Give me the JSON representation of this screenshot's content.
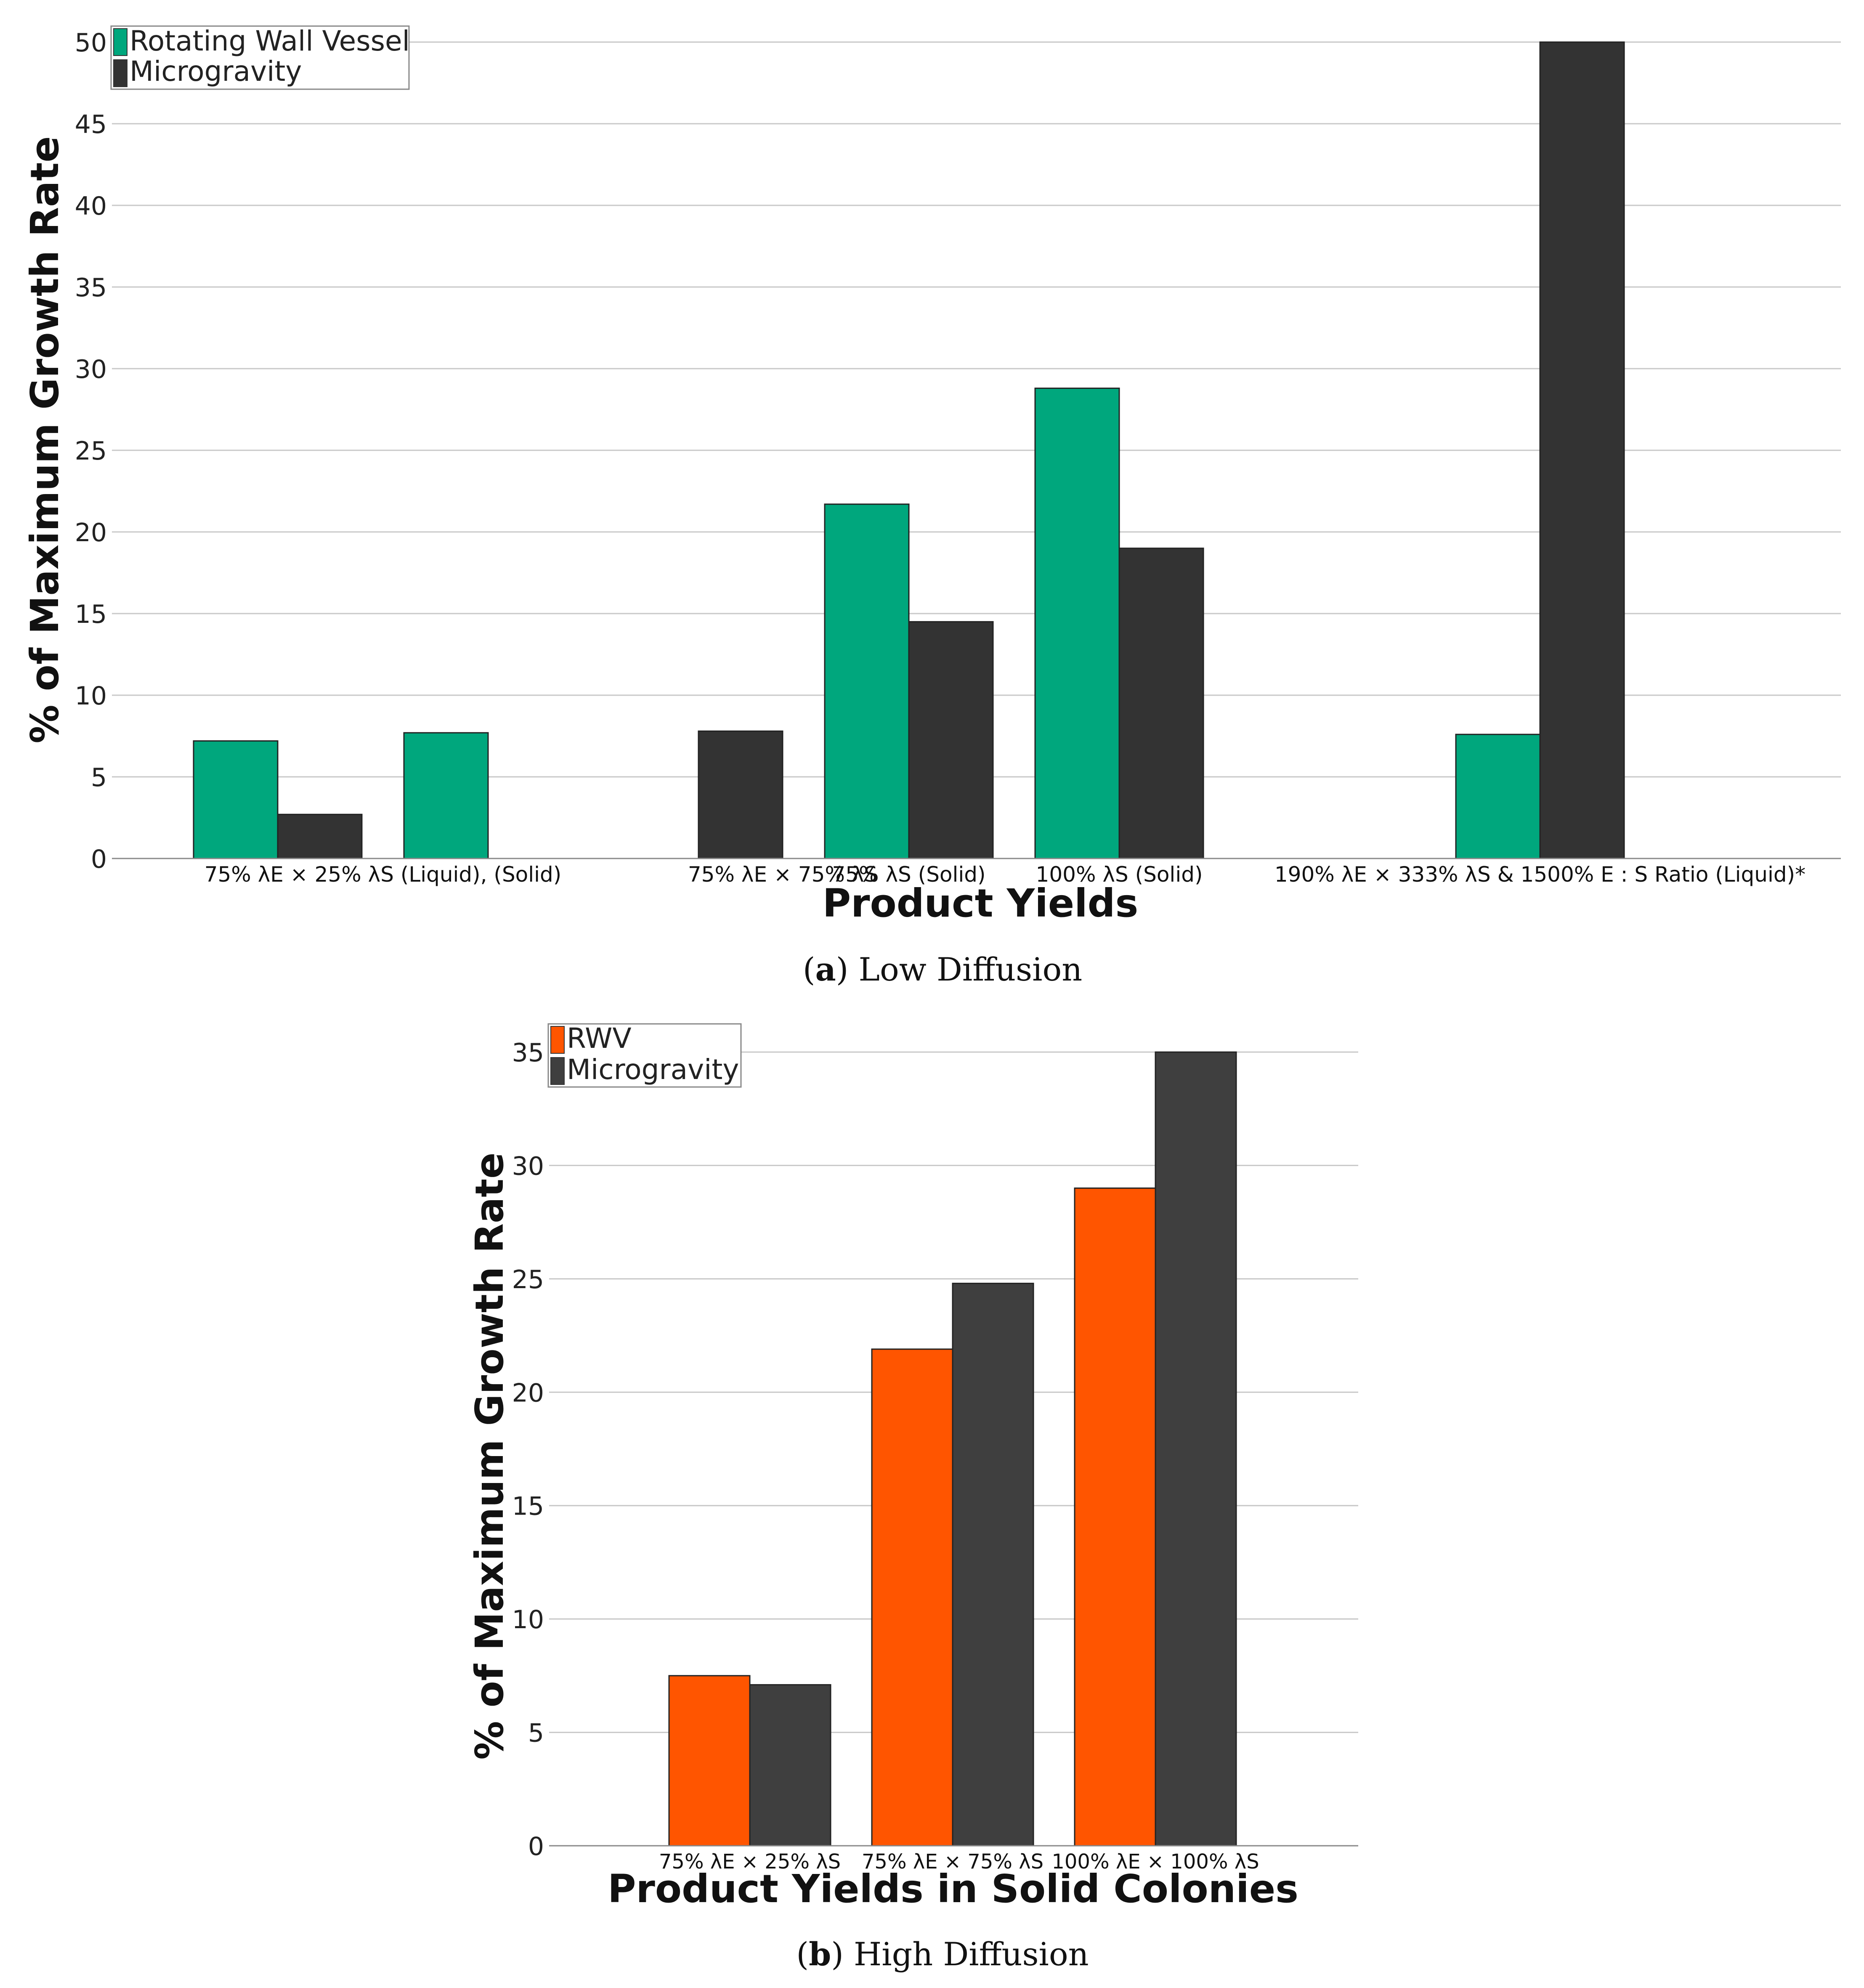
{
  "figure": {
    "captions": [
      {
        "letter": "a",
        "text": "Low Diffusion"
      },
      {
        "letter": "b",
        "text": "High Diffusion"
      }
    ]
  },
  "chart_data": [
    {
      "type": "bar",
      "panel": "a",
      "title": "",
      "xlabel": "Product Yields",
      "ylabel": "% of Maximum Growth Rate",
      "ylim": [
        0,
        50
      ],
      "yticks": [
        0,
        5,
        10,
        15,
        20,
        25,
        30,
        35,
        40,
        45,
        50
      ],
      "grid": true,
      "legend": "top-left",
      "slots": [
        {
          "rwv": 7.2,
          "micro": 2.7
        },
        {
          "rwv": 7.7,
          "micro": null
        },
        {
          "rwv": null,
          "micro": 7.8
        },
        {
          "rwv": 21.7,
          "micro": 14.5
        },
        {
          "rwv": 28.8,
          "micro": 19.0
        },
        {
          "rwv": null,
          "micro": null
        },
        {
          "rwv": 7.6,
          "micro": 50.0
        }
      ],
      "category_labels": [
        {
          "text": "75% λE × 25% λS (Liquid),  (Solid)",
          "center_slot": 0.5
        },
        {
          "text": "75% λE × 75% λS",
          "center_slot": 2.4
        },
        {
          "text": "75% λS (Solid)",
          "center_slot": 3.0
        },
        {
          "text": "100% λS (Solid)",
          "center_slot": 4.0
        },
        {
          "text": "190% λE × 333% λS & 1500% E : S Ratio (Liquid)*",
          "center_slot": 6.0
        }
      ],
      "series": [
        {
          "name": "Rotating Wall Vessel",
          "key": "rwv",
          "color": "#00a77d"
        },
        {
          "name": "Microgravity",
          "key": "micro",
          "color": "#333333"
        }
      ]
    },
    {
      "type": "bar",
      "panel": "b",
      "title": "",
      "xlabel": "Product Yields in Solid Colonies",
      "ylabel": "% of Maximum Growth Rate",
      "ylim": [
        0,
        35
      ],
      "yticks": [
        0,
        5,
        10,
        15,
        20,
        25,
        30,
        35
      ],
      "grid": true,
      "legend": "top-left",
      "categories": [
        "75% λE × 25% λS",
        "75% λE × 75% λS",
        "100% λE × 100% λS"
      ],
      "series": [
        {
          "name": "RWV",
          "color": "#ff5500",
          "values": [
            7.5,
            21.9,
            29.0
          ]
        },
        {
          "name": "Microgravity",
          "color": "#3f3f3f",
          "values": [
            7.1,
            24.8,
            35.0
          ]
        }
      ]
    }
  ]
}
